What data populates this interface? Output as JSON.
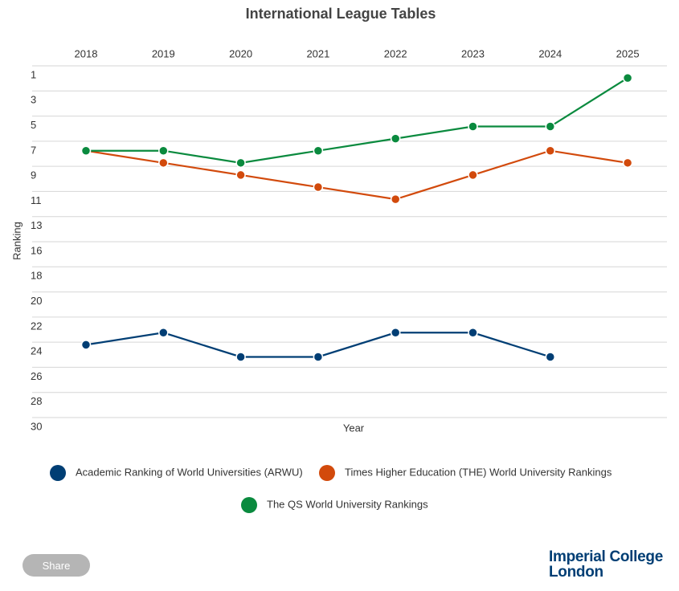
{
  "chart_data": {
    "type": "line",
    "title": "International League Tables",
    "x_label": "Year",
    "y_label": "Ranking",
    "categories": [
      "2018",
      "2019",
      "2020",
      "2021",
      "2022",
      "2023",
      "2024",
      "2025"
    ],
    "ylim": [
      1,
      30
    ],
    "y_reversed": true,
    "grid": true,
    "yticks": [
      1,
      {
        "value": 3.071,
        "label": "3"
      },
      {
        "value": 5.143,
        "label": "5"
      },
      {
        "value": 7.214,
        "label": "7"
      },
      {
        "value": 9.286,
        "label": "9"
      },
      {
        "value": 11.357,
        "label": "11"
      },
      {
        "value": 13.429,
        "label": "13"
      },
      {
        "value": 15.5,
        "label": "16"
      },
      {
        "value": 17.571,
        "label": "18"
      },
      {
        "value": 19.643,
        "label": "20"
      },
      {
        "value": 21.714,
        "label": "22"
      },
      {
        "value": 23.786,
        "label": "24"
      },
      {
        "value": 25.857,
        "label": "26"
      },
      {
        "value": 27.929,
        "label": "28"
      },
      30
    ],
    "series": [
      {
        "name": "Academic Ranking of World Universities (ARWU)",
        "color": "#003e74",
        "values": [
          24,
          23,
          25,
          25,
          23,
          23,
          25,
          null
        ]
      },
      {
        "name": "Times Higher Education (THE) World University Rankings",
        "color": "#d24a0c",
        "values": [
          8,
          9,
          10,
          11,
          12,
          10,
          8,
          9
        ]
      },
      {
        "name": "The QS World University Rankings",
        "color": "#0a8a3e",
        "values": [
          8,
          8,
          9,
          8,
          7,
          6,
          6,
          2
        ]
      }
    ]
  },
  "footer": {
    "share": "Share",
    "logo_line1": "Imperial College",
    "logo_line2": "London"
  }
}
